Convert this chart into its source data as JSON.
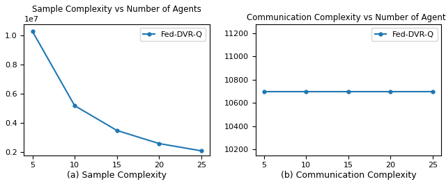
{
  "left_title": "Sample Complexity vs Number of Agents",
  "right_title": "Communication Complexity vs Number of Agents",
  "x": [
    5,
    10,
    15,
    20,
    25
  ],
  "sample_complexity": [
    10300000.0,
    5200000.0,
    3500000.0,
    2600000.0,
    2100000.0
  ],
  "comm_complexity": [
    10700,
    10700,
    10700,
    10700,
    10700
  ],
  "line_color": "#1f77b4",
  "legend_label": "Fed-DVR-Q",
  "caption_left": "(a) Sample Complexity",
  "caption_right": "(b) Communication Complexity",
  "left_ylim": [
    1800000.0,
    10800000.0
  ],
  "right_ylim": [
    10150,
    11280
  ],
  "right_yticks": [
    10200,
    10400,
    10600,
    10800,
    11000,
    11200
  ],
  "left_yticks": [
    2000000.0,
    4000000.0,
    6000000.0,
    8000000.0,
    10000000.0
  ]
}
